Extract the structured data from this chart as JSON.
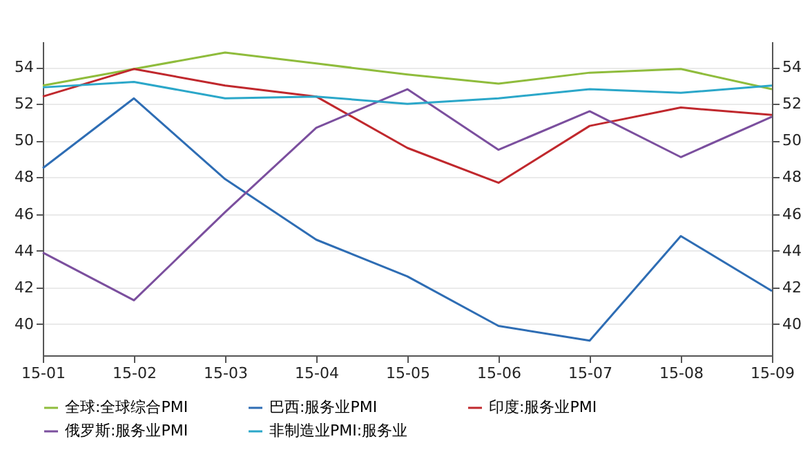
{
  "chart_data": {
    "type": "line",
    "categories": [
      "15-01",
      "15-02",
      "15-03",
      "15-04",
      "15-05",
      "15-06",
      "15-07",
      "15-08",
      "15-09"
    ],
    "series": [
      {
        "name": "全球:全球综合PMI",
        "color": "#8fbc3c",
        "values": [
          53.0,
          53.9,
          54.8,
          54.2,
          53.6,
          53.1,
          53.7,
          53.9,
          52.8
        ]
      },
      {
        "name": "巴西:服务业PMI",
        "color": "#2e6db4",
        "values": [
          48.5,
          52.3,
          47.9,
          44.6,
          42.6,
          39.9,
          39.1,
          44.8,
          41.8
        ]
      },
      {
        "name": "印度:服务业PMI",
        "color": "#c0282d",
        "values": [
          52.4,
          53.9,
          53.0,
          52.4,
          49.6,
          47.7,
          50.8,
          51.8,
          51.4
        ]
      },
      {
        "name": "俄罗斯:服务业PMI",
        "color": "#7b4f9e",
        "values": [
          43.9,
          41.3,
          46.1,
          50.7,
          52.8,
          49.5,
          51.6,
          49.1,
          51.3
        ]
      },
      {
        "name": "非制造业PMI:服务业",
        "color": "#2ba7c9",
        "values": [
          52.9,
          53.2,
          52.3,
          52.4,
          52.0,
          52.3,
          52.8,
          52.6,
          53.0
        ]
      }
    ],
    "ylim": [
      38.3,
      55.4
    ],
    "yticks": [
      40,
      42,
      44,
      46,
      48,
      50,
      52,
      54
    ],
    "y2lim": [
      38.3,
      55.4
    ],
    "y2ticks": [
      40,
      42,
      44,
      46,
      48,
      50,
      52,
      54
    ],
    "grid": "y",
    "legend": "bottom",
    "marker": "none",
    "line_style": "solid"
  }
}
